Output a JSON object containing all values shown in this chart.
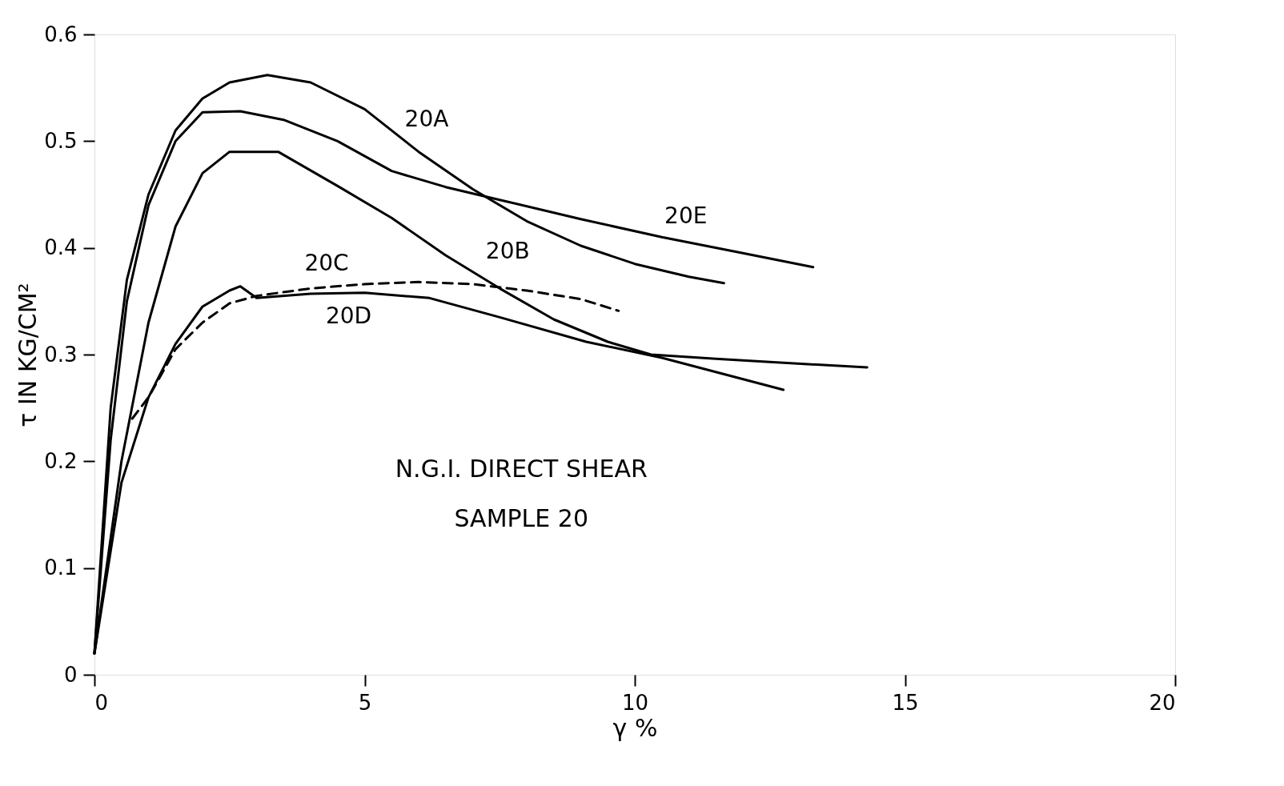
{
  "chart_data": {
    "type": "line",
    "xlabel": "γ %",
    "ylabel": "τ IN KG/CM²",
    "xlim": [
      0,
      20
    ],
    "xticks": [
      0,
      5,
      10,
      15,
      20
    ],
    "ylim": [
      0,
      0.6
    ],
    "yticks": [
      0,
      0.1,
      0.2,
      0.3,
      0.4,
      0.5,
      0.6
    ],
    "grid": false,
    "legend": false,
    "marker": "none",
    "series": [
      {
        "name": "20A",
        "color": "#000000",
        "line_style": "solid",
        "x": [
          0,
          0.3,
          0.6,
          1.0,
          1.5,
          2.0,
          2.5,
          3.2,
          4.0,
          5.0,
          6.0,
          7.0,
          8.0,
          9.0,
          10.0,
          11.0,
          11.65
        ],
        "values": [
          0.02,
          0.25,
          0.37,
          0.45,
          0.51,
          0.54,
          0.555,
          0.562,
          0.555,
          0.53,
          0.49,
          0.455,
          0.425,
          0.402,
          0.385,
          0.373,
          0.367
        ]
      },
      {
        "name": "20E",
        "color": "#000000",
        "line_style": "solid",
        "x": [
          0,
          0.3,
          0.6,
          1.0,
          1.5,
          2.0,
          2.7,
          3.5,
          4.5,
          5.5,
          6.5,
          7.5,
          9.0,
          10.5,
          12.0,
          13.3
        ],
        "values": [
          0.02,
          0.22,
          0.35,
          0.44,
          0.5,
          0.527,
          0.528,
          0.52,
          0.5,
          0.472,
          0.457,
          0.445,
          0.427,
          0.41,
          0.395,
          0.382
        ]
      },
      {
        "name": "20B",
        "color": "#000000",
        "line_style": "solid",
        "x": [
          0,
          0.5,
          1.0,
          1.5,
          2.0,
          2.5,
          3.4,
          4.5,
          5.5,
          6.5,
          7.5,
          8.5,
          9.5,
          10.3,
          11.5,
          12.5,
          14.3
        ],
        "values": [
          0.02,
          0.2,
          0.33,
          0.42,
          0.47,
          0.49,
          0.49,
          0.458,
          0.428,
          0.393,
          0.362,
          0.333,
          0.312,
          0.3,
          0.296,
          0.293,
          0.288
        ]
      },
      {
        "name": "20D",
        "color": "#000000",
        "line_style": "solid",
        "x": [
          0,
          0.5,
          1.0,
          1.5,
          2.0,
          2.5,
          2.7,
          3.0,
          4.0,
          5.0,
          6.2,
          7.5,
          9.1,
          10.5,
          12.75
        ],
        "values": [
          0.02,
          0.18,
          0.26,
          0.31,
          0.345,
          0.36,
          0.364,
          0.353,
          0.357,
          0.358,
          0.353,
          0.335,
          0.312,
          0.297,
          0.267
        ]
      },
      {
        "name": "20C",
        "color": "#000000",
        "line_style": "dashed",
        "x": [
          0.7,
          1.0,
          1.5,
          2.0,
          2.5,
          3.0,
          4.0,
          5.0,
          6.0,
          7.0,
          8.0,
          9.0,
          9.7
        ],
        "values": [
          0.24,
          0.26,
          0.305,
          0.33,
          0.348,
          0.355,
          0.362,
          0.366,
          0.368,
          0.366,
          0.36,
          0.352,
          0.341
        ]
      }
    ],
    "annotations": [
      "N.G.I. DIRECT SHEAR",
      "SAMPLE 20"
    ]
  }
}
